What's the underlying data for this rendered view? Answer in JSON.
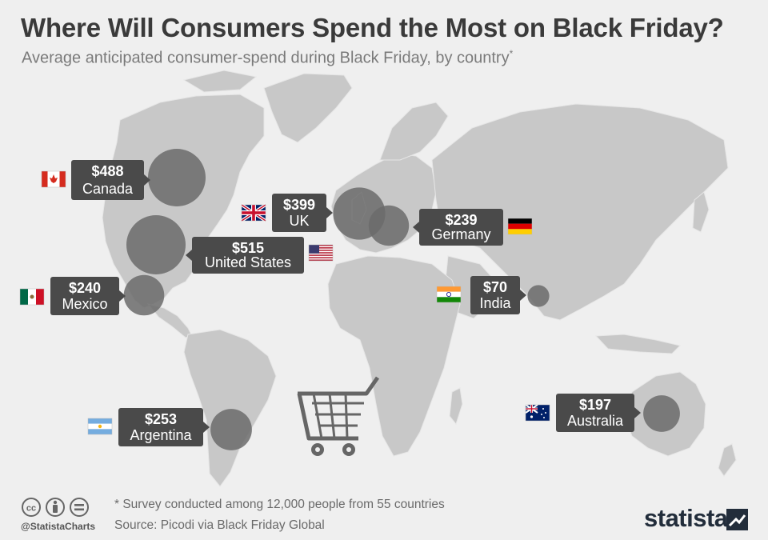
{
  "title": "Where Will Consumers Spend the Most on Black Friday?",
  "subtitle": "Average anticipated consumer-spend during Black Friday, by country",
  "subtitle_mark": "*",
  "footnote": "* Survey conducted among 12,000 people from 55 countries",
  "source": "Source: Picodi via Black Friday Global",
  "handle": "@StatistaCharts",
  "brand": "statista",
  "colors": {
    "background": "#efefef",
    "land": "#c8c8c8",
    "bubble": "#6b6b6b",
    "label_box": "#4a4a4a",
    "label_text": "#ffffff"
  },
  "icons": [
    "creative-commons-icon",
    "attribution-icon",
    "no-derivatives-icon",
    "shopping-cart-icon",
    "statista-logo-icon"
  ],
  "chart_data": {
    "type": "bubble-map",
    "unit": "USD",
    "series": [
      {
        "country": "Canada",
        "value": 488,
        "label": "$488",
        "flag": "canada-flag-icon"
      },
      {
        "country": "United States",
        "value": 515,
        "label": "$515",
        "flag": "usa-flag-icon"
      },
      {
        "country": "Mexico",
        "value": 240,
        "label": "$240",
        "flag": "mexico-flag-icon"
      },
      {
        "country": "UK",
        "value": 399,
        "label": "$399",
        "flag": "uk-flag-icon"
      },
      {
        "country": "Germany",
        "value": 239,
        "label": "$239",
        "flag": "germany-flag-icon"
      },
      {
        "country": "India",
        "value": 70,
        "label": "$70",
        "flag": "india-flag-icon"
      },
      {
        "country": "Argentina",
        "value": 253,
        "label": "$253",
        "flag": "argentina-flag-icon"
      },
      {
        "country": "Australia",
        "value": 197,
        "label": "$197",
        "flag": "australia-flag-icon"
      }
    ]
  }
}
